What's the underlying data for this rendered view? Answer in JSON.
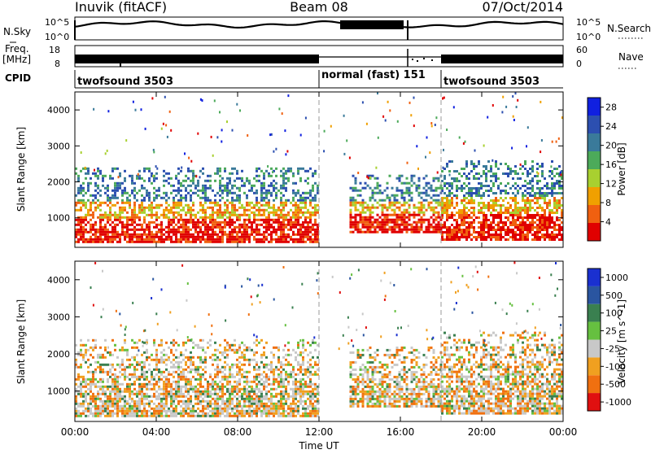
{
  "header": {
    "station": "Inuvik (fitACF)",
    "beam": "Beam 08",
    "date": "07/Oct/2014"
  },
  "noise_panel": {
    "left_label": "N.Sky",
    "left_ticks": [
      "10^5",
      "10^0"
    ],
    "right_label": "N.Search",
    "right_ticks": [
      "10^5",
      "10^0"
    ]
  },
  "freq_panel": {
    "left_label_1": "Freq.",
    "left_label_2": "[MHz]",
    "left_ticks": [
      "18",
      "8"
    ],
    "right_label": "Nave",
    "right_ticks": [
      "60",
      "0"
    ]
  },
  "cpid_panel": {
    "label": "CPID",
    "segments": [
      {
        "text": "twofsound 3503",
        "start_hour": 0
      },
      {
        "text": "normal (fast) 151",
        "start_hour": 12
      },
      {
        "text": "twofsound 3503",
        "start_hour": 18
      }
    ]
  },
  "colors": {
    "power": [
      "#1020e0",
      "#2c4fb0",
      "#3a7a9a",
      "#4caa5a",
      "#a8d030",
      "#f0a000",
      "#f06010",
      "#e00000"
    ],
    "velocity": [
      "#1a30d0",
      "#2a55a0",
      "#3a8050",
      "#66c040",
      "#c8c8c8",
      "#f0a020",
      "#f07010",
      "#e01010"
    ]
  },
  "chart_data": [
    {
      "type": "heatmap",
      "title": "",
      "xlabel": "",
      "ylabel": "Slant Range [km]",
      "xlim": [
        0,
        24
      ],
      "ylim": [
        180,
        4500
      ],
      "yticks": [
        "1000",
        "2000",
        "3000",
        "4000"
      ],
      "colorbar": {
        "label": "Power [dB]",
        "ticks": [
          "4",
          "8",
          "12",
          "16",
          "20",
          "24",
          "28"
        ],
        "range": [
          0,
          30
        ]
      },
      "echo_regions": [
        {
          "x": [
            0,
            12
          ],
          "y": [
            300,
            2400
          ],
          "value": 22
        },
        {
          "x": [
            13.5,
            18
          ],
          "y": [
            600,
            2200
          ],
          "value": 14
        },
        {
          "x": [
            18,
            24
          ],
          "y": [
            400,
            2600
          ],
          "value": 24
        }
      ]
    },
    {
      "type": "heatmap",
      "title": "",
      "xlabel": "Time UT",
      "ylabel": "Slant Range [km]",
      "xlim": [
        0,
        24
      ],
      "ylim": [
        180,
        4500
      ],
      "xticks": [
        "00:00",
        "04:00",
        "08:00",
        "12:00",
        "16:00",
        "20:00",
        "00:00"
      ],
      "yticks": [
        "1000",
        "2000",
        "3000",
        "4000"
      ],
      "colorbar": {
        "label": "Velocity [m s^-1]",
        "ticks": [
          "1000",
          "500",
          "100",
          "25",
          "-25",
          "-100",
          "-500",
          "-1000"
        ]
      },
      "echo_regions": [
        {
          "x": [
            0,
            12
          ],
          "y": [
            300,
            2400
          ],
          "value": -200
        },
        {
          "x": [
            13.5,
            18
          ],
          "y": [
            600,
            2200
          ],
          "value": -150
        },
        {
          "x": [
            18,
            24
          ],
          "y": [
            400,
            2600
          ],
          "value": -100
        }
      ]
    }
  ]
}
